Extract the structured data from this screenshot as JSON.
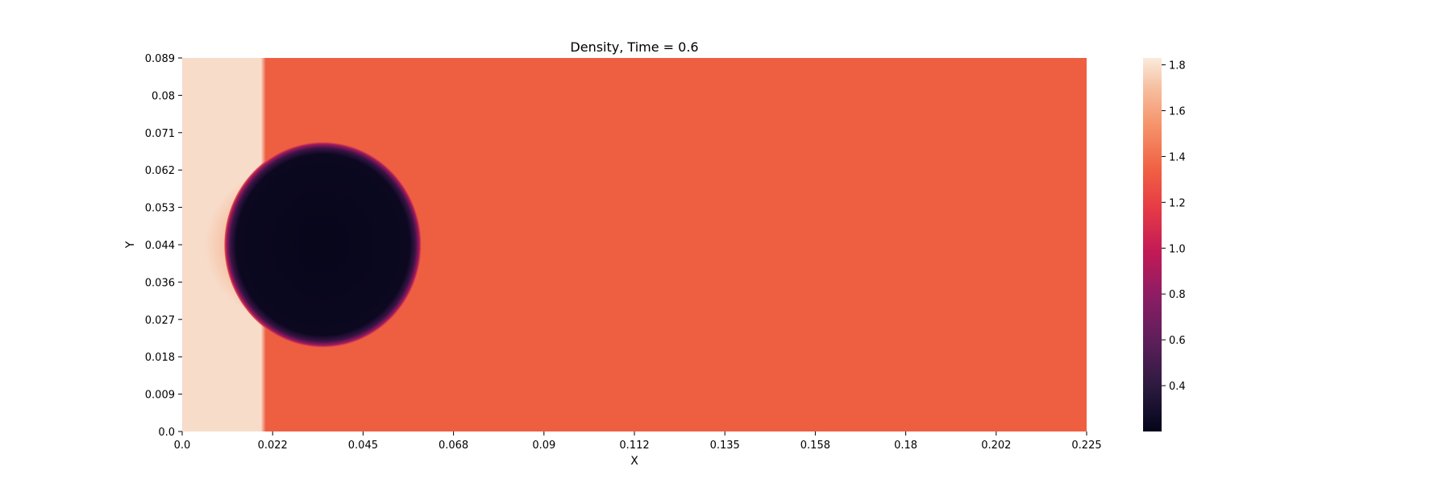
{
  "chart_data": {
    "type": "heatmap",
    "title": "Density, Time = 0.6",
    "xlabel": "X",
    "ylabel": "Y",
    "xlim": [
      0.0,
      0.225
    ],
    "ylim": [
      0.0,
      0.089
    ],
    "x_tick_labels": [
      "0.0",
      "0.022",
      "0.045",
      "0.068",
      "0.09",
      "0.112",
      "0.135",
      "0.158",
      "0.18",
      "0.202",
      "0.225"
    ],
    "y_tick_labels": [
      "0.0",
      "0.009",
      "0.018",
      "0.027",
      "0.036",
      "0.044",
      "0.053",
      "0.062",
      "0.071",
      "0.08",
      "0.089"
    ],
    "colorbar": {
      "range": [
        0.2,
        1.83
      ],
      "tick_labels": [
        "0.4",
        "0.6",
        "0.8",
        "1.0",
        "1.2",
        "1.4",
        "1.6",
        "1.8"
      ],
      "tick_values": [
        0.4,
        0.6,
        0.8,
        1.0,
        1.2,
        1.4,
        1.6,
        1.8
      ]
    },
    "colormap": "rocket",
    "colors": {
      "post_shock": "#f7dcca",
      "ambient": "#ee5e41",
      "bubble": "#07061a",
      "bubble_rim": "#a5185e",
      "reflected_wave": "#f5a47c"
    },
    "field": {
      "post_shock_density": 1.82,
      "ambient_density": 1.29,
      "bubble_density": 0.21,
      "shock_front_x": 0.02,
      "bubble_center": [
        0.035,
        0.0445
      ],
      "bubble_radius": 0.0245
    },
    "grid": false,
    "colorbar_placement": "right"
  }
}
